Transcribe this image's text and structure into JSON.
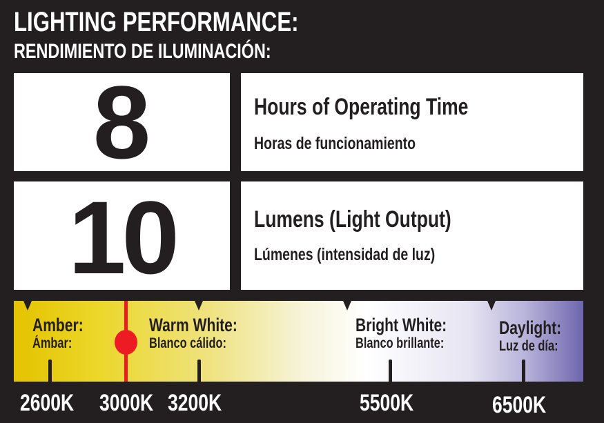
{
  "header": {
    "title": "LIGHTING PERFORMANCE:",
    "subtitle": "RENDIMIENTO DE ILUMINACIÓN:"
  },
  "runtime": {
    "value": "8",
    "label_en": "Hours of Operating Time",
    "label_es": "Horas de funcionamiento"
  },
  "lumens": {
    "value": "10",
    "label_en": "Lumens (Light Output)",
    "label_es": "Lúmenes (intensidad de luz)"
  },
  "color_temperature": {
    "selected_kelvin": "3000K",
    "marker_color": "#ed1c24",
    "zones": [
      {
        "label_en": "Amber:",
        "label_es": "Ámbar:"
      },
      {
        "label_en": "Warm White:",
        "label_es": "Blanco cálido:"
      },
      {
        "label_en": "Bright White:",
        "label_es": "Blanco brillante:"
      },
      {
        "label_en": "Daylight:",
        "label_es": "Luz de día:"
      }
    ],
    "ticks": [
      "2600K",
      "3000K",
      "3200K",
      "5500K",
      "6500K"
    ]
  },
  "colors": {
    "background": "#231f20",
    "amber": "#e4c300",
    "daylight": "#6e66ad"
  }
}
